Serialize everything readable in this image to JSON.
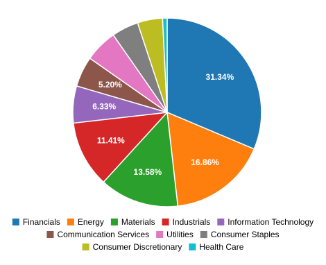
{
  "chart_data": {
    "type": "pie",
    "categories": [
      "Financials",
      "Energy",
      "Materials",
      "Industrials",
      "Information Technology",
      "Communication Services",
      "Utilities",
      "Consumer Staples",
      "Consumer Discretionary",
      "Health Care"
    ],
    "values": [
      31.34,
      16.86,
      13.58,
      11.41,
      6.33,
      5.2,
      5.6,
      4.6,
      4.3,
      0.78
    ],
    "value_labels": [
      "31.34%",
      "16.86%",
      "13.58%",
      "11.41%",
      "6.33%",
      "5.20%",
      null,
      null,
      null,
      null
    ],
    "colors": [
      "#1f77b4",
      "#ff7f0e",
      "#2ca02c",
      "#d62728",
      "#9467bd",
      "#8c564b",
      "#e377c2",
      "#7f7f7f",
      "#bcbd22",
      "#17becf"
    ],
    "legend": "bottom"
  }
}
